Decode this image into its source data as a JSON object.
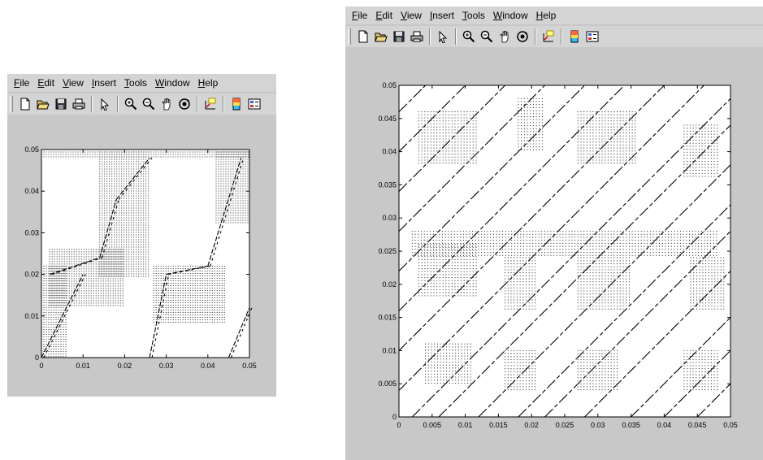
{
  "menu_labels": [
    "File",
    "Edit",
    "View",
    "Insert",
    "Tools",
    "Window",
    "Help"
  ],
  "toolbar_icons": [
    "new-file-icon",
    "open-folder-icon",
    "save-icon",
    "print-icon",
    "sep",
    "pointer-icon",
    "sep",
    "zoom-in-icon",
    "zoom-out-icon",
    "pan-hand-icon",
    "rotate-3d-icon",
    "sep",
    "data-cursor-icon",
    "sep",
    "colorbar-icon",
    "legend-icon"
  ],
  "colors": {
    "window_bg": "#c8c8c8",
    "bar_bg": "#d4d4d4",
    "plot_bg": "#ffffff",
    "ink": "#000000"
  },
  "chart_data": [
    {
      "type": "scatter",
      "title": "",
      "xlabel": "",
      "ylabel": "",
      "xlim": [
        0,
        0.05
      ],
      "ylim": [
        0,
        0.05
      ],
      "xticks": [
        "0",
        "0.01",
        "0.02",
        "0.03",
        "0.04",
        "0.05"
      ],
      "yticks": [
        "0",
        "0.01",
        "0.02",
        "0.03",
        "0.04",
        "0.05"
      ],
      "grid": false,
      "dot_regions": [
        [
          0.002,
          0.02,
          0.012,
          0.026
        ],
        [
          0.014,
          0.026,
          0.019,
          0.05
        ],
        [
          0.027,
          0.044,
          0.008,
          0.022
        ],
        [
          0.042,
          0.05,
          0.032,
          0.05
        ],
        [
          0.0,
          0.05,
          0.048,
          0.05
        ],
        [
          0.0,
          0.006,
          0.0,
          0.022
        ]
      ],
      "diagonal_lines": [
        {
          "x0": 0.0,
          "y0": 0.0,
          "x1": 0.01,
          "y1": 0.02
        },
        {
          "x0": 0.002,
          "y0": 0.02,
          "x1": 0.014,
          "y1": 0.024
        },
        {
          "x0": 0.014,
          "y0": 0.024,
          "x1": 0.018,
          "y1": 0.038
        },
        {
          "x0": 0.018,
          "y0": 0.038,
          "x1": 0.026,
          "y1": 0.048
        },
        {
          "x0": 0.026,
          "y0": 0.0,
          "x1": 0.03,
          "y1": 0.02
        },
        {
          "x0": 0.03,
          "y0": 0.02,
          "x1": 0.04,
          "y1": 0.022
        },
        {
          "x0": 0.04,
          "y0": 0.022,
          "x1": 0.048,
          "y1": 0.048
        },
        {
          "x0": 0.045,
          "y0": 0.0,
          "x1": 0.05,
          "y1": 0.012
        }
      ]
    },
    {
      "type": "scatter",
      "title": "",
      "xlabel": "",
      "ylabel": "",
      "xlim": [
        0,
        0.05
      ],
      "ylim": [
        0,
        0.05
      ],
      "xticks": [
        "0",
        "0.005",
        "0.01",
        "0.015",
        "0.02",
        "0.025",
        "0.03",
        "0.035",
        "0.04",
        "0.045",
        "0.05"
      ],
      "yticks": [
        "0",
        "0.005",
        "0.01",
        "0.015",
        "0.02",
        "0.025",
        "0.03",
        "0.035",
        "0.04",
        "0.045",
        "0.05"
      ],
      "grid": false,
      "dot_regions": [
        [
          0.003,
          0.012,
          0.038,
          0.046
        ],
        [
          0.018,
          0.022,
          0.04,
          0.048
        ],
        [
          0.027,
          0.036,
          0.038,
          0.046
        ],
        [
          0.043,
          0.048,
          0.036,
          0.044
        ],
        [
          0.003,
          0.012,
          0.018,
          0.026
        ],
        [
          0.016,
          0.021,
          0.016,
          0.024
        ],
        [
          0.027,
          0.035,
          0.016,
          0.024
        ],
        [
          0.044,
          0.049,
          0.016,
          0.024
        ],
        [
          0.004,
          0.011,
          0.005,
          0.011
        ],
        [
          0.016,
          0.021,
          0.004,
          0.01
        ],
        [
          0.027,
          0.033,
          0.004,
          0.01
        ],
        [
          0.043,
          0.048,
          0.004,
          0.01
        ],
        [
          0.002,
          0.048,
          0.024,
          0.028
        ]
      ],
      "diagonal_offsets": [
        -0.045,
        -0.04,
        -0.035,
        -0.028,
        -0.022,
        -0.018,
        -0.012,
        -0.006,
        -0.002,
        0.004,
        0.01,
        0.016,
        0.022,
        0.028,
        0.034,
        0.04,
        0.046
      ]
    }
  ]
}
